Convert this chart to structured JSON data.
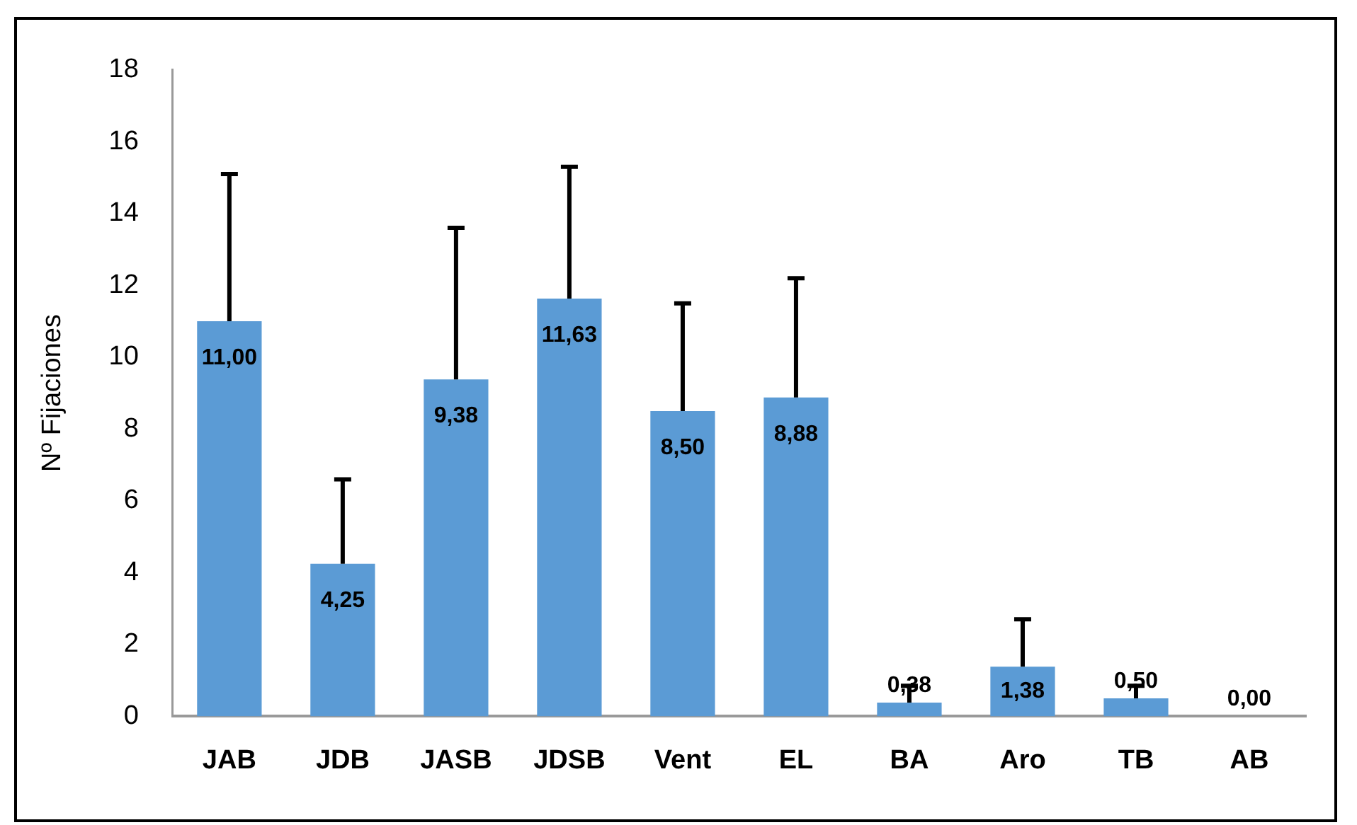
{
  "chart_data": {
    "type": "bar",
    "ylabel": "Nº Fijaciones",
    "categories": [
      "JAB",
      "JDB",
      "JASB",
      "JDSB",
      "Vent",
      "EL",
      "BA",
      "Aro",
      "TB",
      "AB"
    ],
    "values": [
      11.0,
      4.25,
      9.38,
      11.63,
      8.5,
      8.88,
      0.38,
      1.38,
      0.5,
      0.0
    ],
    "errors": [
      [
        11.0,
        15.1
      ],
      [
        4.25,
        6.6
      ],
      [
        9.38,
        13.6
      ],
      [
        11.63,
        15.3
      ],
      [
        8.5,
        11.5
      ],
      [
        8.88,
        12.2
      ],
      [
        0.38,
        0.85
      ],
      [
        1.38,
        2.7
      ],
      [
        0.5,
        0.85
      ],
      [
        0.0,
        0.0
      ]
    ],
    "color": "#5b9bd5",
    "ylim": [
      0,
      18
    ],
    "yticks": [
      0,
      2,
      4,
      6,
      8,
      10,
      12,
      14,
      16,
      18
    ],
    "value_labels": [
      "11,00",
      "4,25",
      "9,38",
      "11,63",
      "8,50",
      "8,88",
      "0,38",
      "1,38",
      "0,50",
      "0,00"
    ],
    "grid": false,
    "legend": false
  }
}
